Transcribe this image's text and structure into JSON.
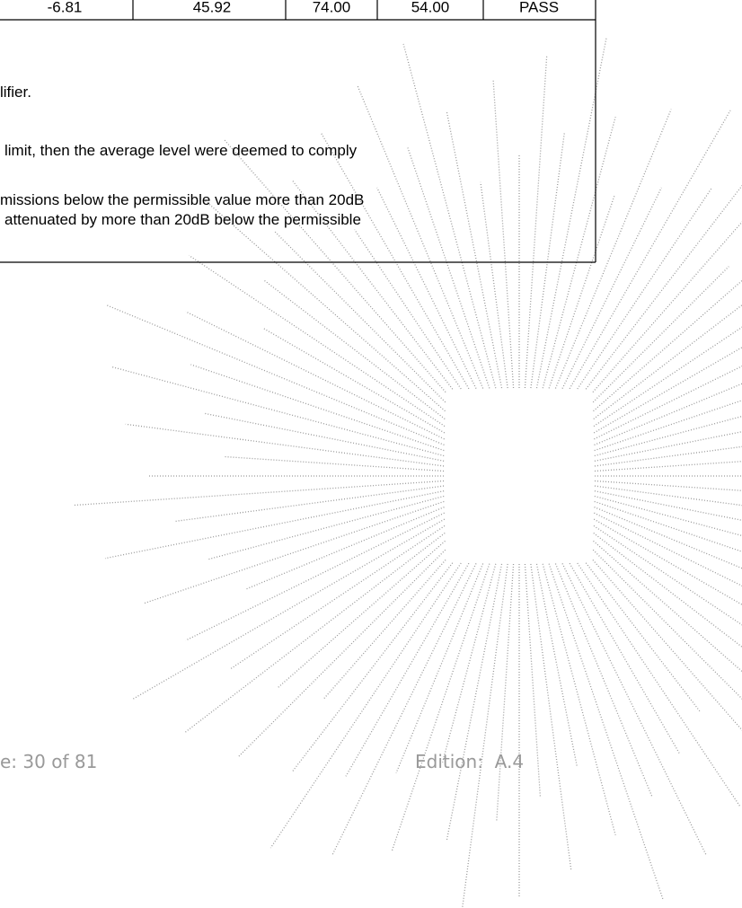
{
  "table": {
    "rows": [
      [
        "-6.81",
        "45.92",
        "74.00",
        "54.00",
        "PASS"
      ]
    ]
  },
  "notes": [
    "lifier.",
    "limit, then the average level were deemed to comply",
    "missions below the permissible value more than 20dB",
    "attenuated by more than 20dB below the permissible"
  ],
  "footer": {
    "page": "e: 30 of 81",
    "edition": "Edition:  A.4"
  }
}
